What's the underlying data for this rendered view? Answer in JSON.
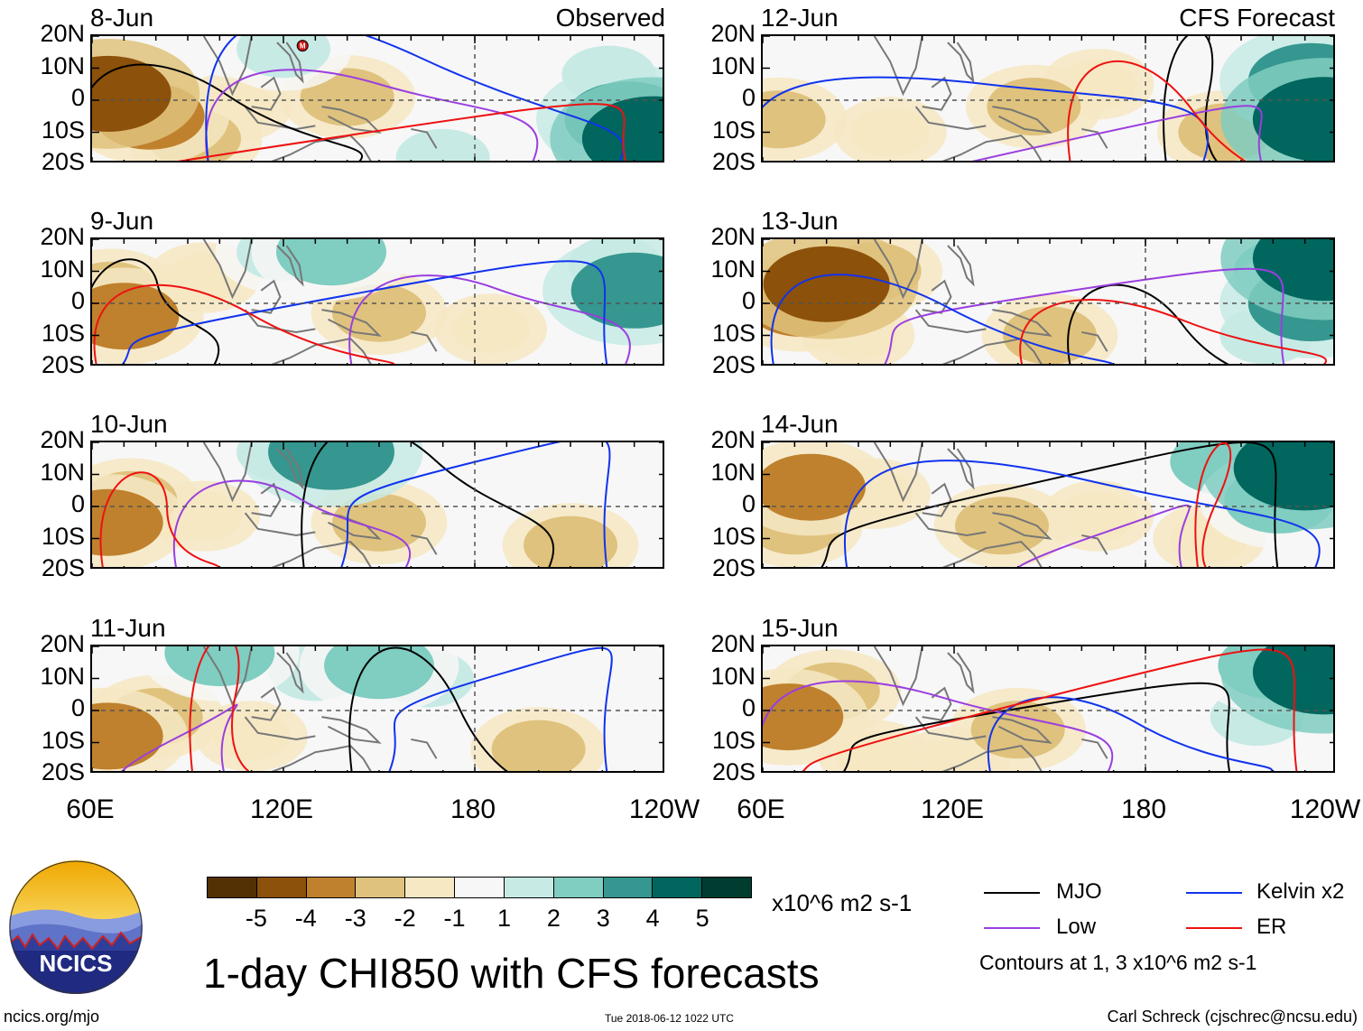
{
  "figure": {
    "title": "1-day CHI850 with CFS forecasts",
    "observed_label": "Observed",
    "forecast_label": "CFS Forecast",
    "website": "ncics.org/mjo",
    "timestamp": "Tue 2018-06-12 1022 UTC",
    "author": "Carl Schreck (cjschrec@ncsu.edu)",
    "logo_text": "NCICS",
    "marker_letter": "M"
  },
  "legend": {
    "units": "x10^6 m2 s-1",
    "contours_note": "Contours at 1, 3 x10^6 m2 s-1",
    "items": [
      {
        "label": "MJO",
        "color": "#000000"
      },
      {
        "label": "Low",
        "color": "#9a3ee0"
      },
      {
        "label": "Kelvin x2",
        "color": "#1133ee"
      },
      {
        "label": "ER",
        "color": "#ee1111"
      }
    ]
  },
  "colors": {
    "shading": [
      "#543005",
      "#8c510a",
      "#bf812d",
      "#dfc27d",
      "#f6e8c3",
      "#f7f7f7",
      "#c7eae5",
      "#80cdc1",
      "#35978f",
      "#01665e",
      "#003c30"
    ],
    "grid": "#555555",
    "coast": "#777777"
  },
  "chart_data": {
    "type": "heatmap",
    "variable": "CHI850 (850-hPa velocity potential) anomaly",
    "colorbar": {
      "levels": [
        -5,
        -4,
        -3,
        -2,
        -1,
        1,
        2,
        3,
        4,
        5
      ],
      "labels": [
        "-5",
        "-4",
        "-3",
        "-2",
        "-1",
        "1",
        "2",
        "3",
        "4",
        "5"
      ],
      "units": "x10^6 m2 s-1"
    },
    "xaxis": {
      "ticks": [
        "60E",
        "120E",
        "180",
        "120W"
      ],
      "range_deg": [
        60,
        240
      ]
    },
    "yaxis": {
      "ticks": [
        "20N",
        "10N",
        "0",
        "10S",
        "20S"
      ],
      "range_deg": [
        -20,
        20
      ]
    },
    "panels": [
      {
        "date": "8-Jun",
        "kind": "observed",
        "blobs": [
          {
            "lon": 65,
            "lat": 2,
            "v": -4
          },
          {
            "lon": 78,
            "lat": -5,
            "v": -3
          },
          {
            "lon": 92,
            "lat": -12,
            "v": -2
          },
          {
            "lon": 105,
            "lat": -2,
            "v": -1
          },
          {
            "lon": 140,
            "lat": 1,
            "v": -2
          },
          {
            "lon": 120,
            "lat": 16,
            "v": 2
          },
          {
            "lon": 105,
            "lat": 18,
            "v": 1
          },
          {
            "lon": 195,
            "lat": 12,
            "v": 1
          },
          {
            "lon": 228,
            "lat": -6,
            "v": 4
          },
          {
            "lon": 236,
            "lat": -12,
            "v": 5
          },
          {
            "lon": 222,
            "lat": 8,
            "v": 2
          },
          {
            "lon": 170,
            "lat": -18,
            "v": 2
          }
        ]
      },
      {
        "date": "9-Jun",
        "kind": "observed",
        "blobs": [
          {
            "lon": 70,
            "lat": -4,
            "v": -3
          },
          {
            "lon": 66,
            "lat": 4,
            "v": -2
          },
          {
            "lon": 120,
            "lat": 16,
            "v": 2
          },
          {
            "lon": 135,
            "lat": 16,
            "v": 3
          },
          {
            "lon": 150,
            "lat": -3,
            "v": -2
          },
          {
            "lon": 95,
            "lat": 8,
            "v": -1
          },
          {
            "lon": 195,
            "lat": 14,
            "v": 1
          },
          {
            "lon": 230,
            "lat": 4,
            "v": 4
          },
          {
            "lon": 224,
            "lat": 12,
            "v": 2
          },
          {
            "lon": 185,
            "lat": -8,
            "v": -1
          }
        ]
      },
      {
        "date": "10-Jun",
        "kind": "observed",
        "blobs": [
          {
            "lon": 65,
            "lat": -5,
            "v": -3
          },
          {
            "lon": 72,
            "lat": 2,
            "v": -2
          },
          {
            "lon": 135,
            "lat": 17,
            "v": 4
          },
          {
            "lon": 120,
            "lat": 17,
            "v": 2
          },
          {
            "lon": 150,
            "lat": -5,
            "v": -2
          },
          {
            "lon": 95,
            "lat": -3,
            "v": -1
          },
          {
            "lon": 200,
            "lat": 12,
            "v": 1
          },
          {
            "lon": 210,
            "lat": -12,
            "v": -2
          },
          {
            "lon": 230,
            "lat": 12,
            "v": 1
          },
          {
            "lon": 155,
            "lat": 8,
            "v": 1
          }
        ]
      },
      {
        "date": "11-Jun",
        "kind": "observed",
        "blobs": [
          {
            "lon": 65,
            "lat": -8,
            "v": -3
          },
          {
            "lon": 80,
            "lat": -2,
            "v": -2
          },
          {
            "lon": 100,
            "lat": 18,
            "v": 3
          },
          {
            "lon": 150,
            "lat": 14,
            "v": 3
          },
          {
            "lon": 165,
            "lat": 10,
            "v": 2
          },
          {
            "lon": 130,
            "lat": 12,
            "v": 2
          },
          {
            "lon": 110,
            "lat": -8,
            "v": -1
          },
          {
            "lon": 200,
            "lat": -12,
            "v": -2
          },
          {
            "lon": 200,
            "lat": 8,
            "v": 1
          },
          {
            "lon": 230,
            "lat": 10,
            "v": 1
          }
        ]
      },
      {
        "date": "12-Jun",
        "kind": "forecast",
        "blobs": [
          {
            "lon": 65,
            "lat": -6,
            "v": -2
          },
          {
            "lon": 100,
            "lat": -10,
            "v": -1
          },
          {
            "lon": 145,
            "lat": -2,
            "v": -2
          },
          {
            "lon": 165,
            "lat": 5,
            "v": -1
          },
          {
            "lon": 195,
            "lat": 16,
            "v": 1
          },
          {
            "lon": 232,
            "lat": 6,
            "v": 4
          },
          {
            "lon": 236,
            "lat": -6,
            "v": 5
          },
          {
            "lon": 225,
            "lat": -12,
            "v": 2
          },
          {
            "lon": 205,
            "lat": -10,
            "v": -2
          },
          {
            "lon": 95,
            "lat": 16,
            "v": 1
          }
        ]
      },
      {
        "date": "13-Jun",
        "kind": "forecast",
        "blobs": [
          {
            "lon": 80,
            "lat": 6,
            "v": -4
          },
          {
            "lon": 72,
            "lat": 0,
            "v": -3
          },
          {
            "lon": 95,
            "lat": 10,
            "v": -2
          },
          {
            "lon": 90,
            "lat": -10,
            "v": -1
          },
          {
            "lon": 150,
            "lat": -10,
            "v": -2
          },
          {
            "lon": 165,
            "lat": -3,
            "v": 1
          },
          {
            "lon": 225,
            "lat": 10,
            "v": 3
          },
          {
            "lon": 236,
            "lat": 14,
            "v": 5
          },
          {
            "lon": 232,
            "lat": 0,
            "v": 4
          },
          {
            "lon": 218,
            "lat": -10,
            "v": 2
          }
        ]
      },
      {
        "date": "14-Jun",
        "kind": "forecast",
        "blobs": [
          {
            "lon": 75,
            "lat": 6,
            "v": -3
          },
          {
            "lon": 70,
            "lat": -6,
            "v": -2
          },
          {
            "lon": 95,
            "lat": 4,
            "v": -1
          },
          {
            "lon": 135,
            "lat": -6,
            "v": -2
          },
          {
            "lon": 165,
            "lat": -3,
            "v": -1
          },
          {
            "lon": 205,
            "lat": 14,
            "v": 3
          },
          {
            "lon": 230,
            "lat": 12,
            "v": 5
          },
          {
            "lon": 222,
            "lat": 2,
            "v": 3
          },
          {
            "lon": 188,
            "lat": 12,
            "v": 1
          },
          {
            "lon": 200,
            "lat": -10,
            "v": -1
          }
        ]
      },
      {
        "date": "15-Jun",
        "kind": "forecast",
        "blobs": [
          {
            "lon": 68,
            "lat": -2,
            "v": -3
          },
          {
            "lon": 82,
            "lat": 6,
            "v": -2
          },
          {
            "lon": 95,
            "lat": -14,
            "v": -1
          },
          {
            "lon": 140,
            "lat": -6,
            "v": -2
          },
          {
            "lon": 165,
            "lat": 10,
            "v": 1
          },
          {
            "lon": 220,
            "lat": 14,
            "v": 3
          },
          {
            "lon": 236,
            "lat": 12,
            "v": 5
          },
          {
            "lon": 215,
            "lat": -2,
            "v": 2
          },
          {
            "lon": 200,
            "lat": -14,
            "v": 1
          },
          {
            "lon": 120,
            "lat": -16,
            "v": -1
          }
        ]
      }
    ]
  }
}
